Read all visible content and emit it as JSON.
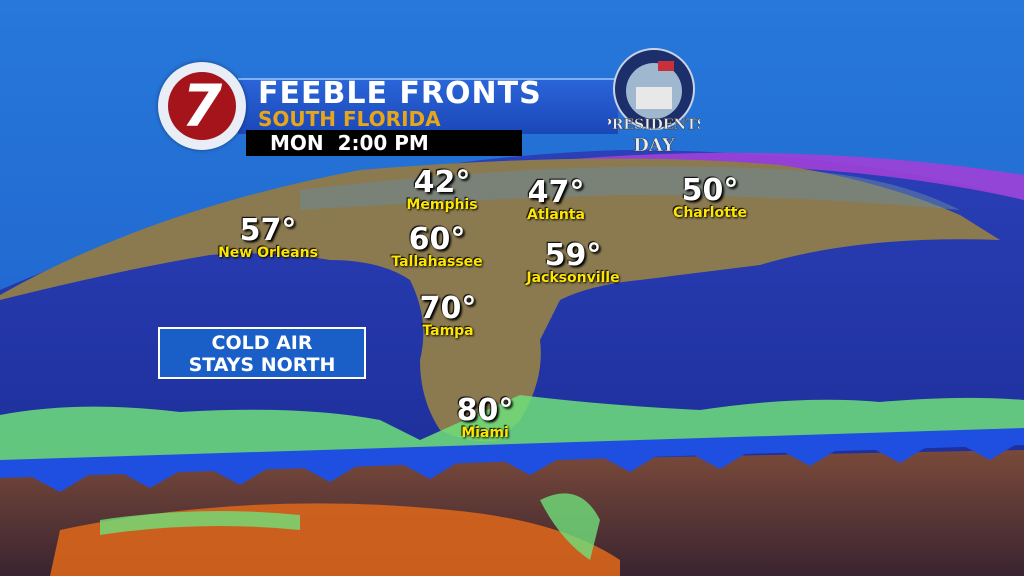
{
  "header": {
    "title": "FEEBLE FRONTS",
    "subtitle": "SOUTH FLORIDA",
    "time": "MON  2:00 PM"
  },
  "logo": {
    "text": "7"
  },
  "holiday_badge": {
    "line1": "PRESIDENTS",
    "line2": "DAY"
  },
  "callout": {
    "line1": "COLD AIR",
    "line2": "STAYS NORTH"
  },
  "cities": [
    {
      "name": "Memphis",
      "temp": "42°"
    },
    {
      "name": "Atlanta",
      "temp": "47°"
    },
    {
      "name": "Charlotte",
      "temp": "50°"
    },
    {
      "name": "New Orleans",
      "temp": "57°"
    },
    {
      "name": "Tallahassee",
      "temp": "60°"
    },
    {
      "name": "Jacksonville",
      "temp": "59°"
    },
    {
      "name": "Tampa",
      "temp": "70°"
    },
    {
      "name": "Miami",
      "temp": "80°"
    }
  ],
  "colors": {
    "ocean": "#1c3bb0",
    "land": "#8a7a4e",
    "front": "#1f4fe0",
    "rain": "#6fe07a",
    "warm": "#d8651c",
    "cold": "#9b3cd8"
  }
}
